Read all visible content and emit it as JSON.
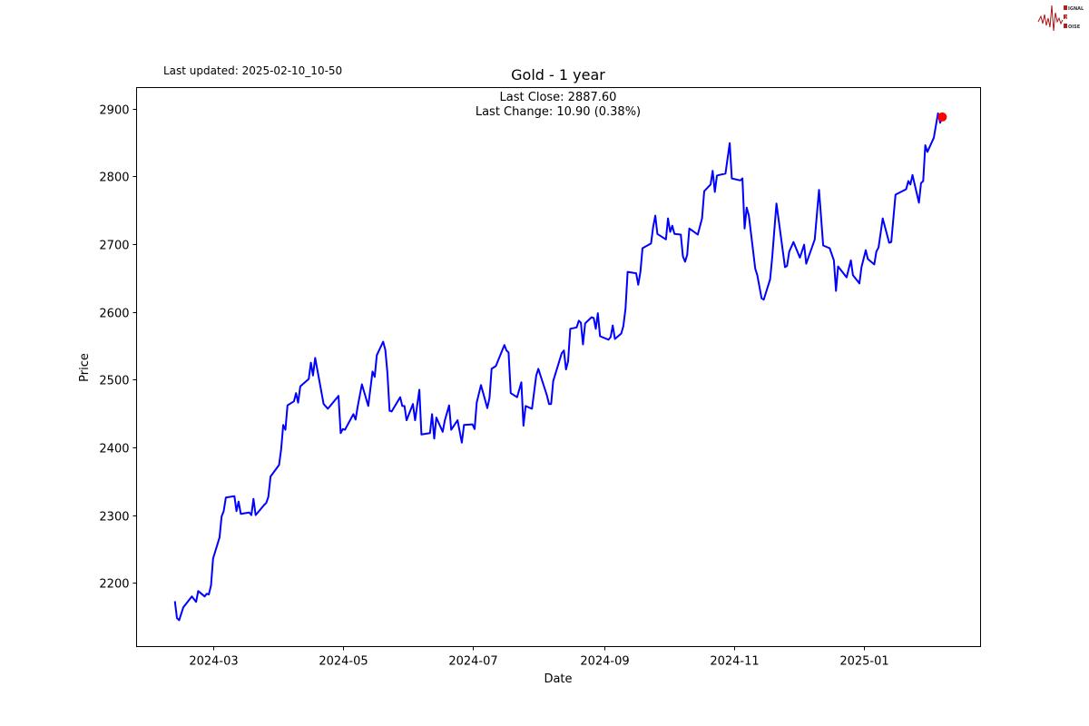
{
  "header": {
    "last_updated": "Last updated: 2025-02-10_10-50",
    "logo_text": "SIGNAL 2 NOISE"
  },
  "chart_data": {
    "type": "line",
    "title": "Gold - 1 year",
    "xlabel": "Date",
    "ylabel": "Price",
    "annotations": [
      "Last Close: 2887.60",
      "Last Change: 10.90 (0.38%)"
    ],
    "xlim": [
      "2024-01-25",
      "2025-02-25"
    ],
    "ylim": [
      2106,
      2931
    ],
    "grid": false,
    "x_ticks": [
      "2024-03",
      "2024-05",
      "2024-07",
      "2024-09",
      "2024-11",
      "2025-01"
    ],
    "y_ticks": [
      2200,
      2300,
      2400,
      2500,
      2600,
      2700,
      2800,
      2900
    ],
    "line_color": "#0000ff",
    "marker_color": "#ff0000",
    "last_point": {
      "x": "2025-02-07",
      "y": 2887.6
    },
    "series": [
      {
        "points": [
          [
            "2024-02-12",
            2173
          ],
          [
            "2024-02-13",
            2148
          ],
          [
            "2024-02-14",
            2145
          ],
          [
            "2024-02-16",
            2164
          ],
          [
            "2024-02-20",
            2180
          ],
          [
            "2024-02-22",
            2172
          ],
          [
            "2024-02-23",
            2188
          ],
          [
            "2024-02-26",
            2180
          ],
          [
            "2024-02-27",
            2184
          ],
          [
            "2024-02-28",
            2183
          ],
          [
            "2024-02-29",
            2196
          ],
          [
            "2024-03-01",
            2236
          ],
          [
            "2024-03-04",
            2267
          ],
          [
            "2024-03-05",
            2298
          ],
          [
            "2024-03-06",
            2306
          ],
          [
            "2024-03-07",
            2326
          ],
          [
            "2024-03-11",
            2328
          ],
          [
            "2024-03-12",
            2306
          ],
          [
            "2024-03-13",
            2320
          ],
          [
            "2024-03-14",
            2302
          ],
          [
            "2024-03-18",
            2304
          ],
          [
            "2024-03-19",
            2300
          ],
          [
            "2024-03-20",
            2324
          ],
          [
            "2024-03-21",
            2300
          ],
          [
            "2024-03-25",
            2315
          ],
          [
            "2024-03-26",
            2318
          ],
          [
            "2024-03-27",
            2327
          ],
          [
            "2024-03-28",
            2357
          ],
          [
            "2024-04-01",
            2374
          ],
          [
            "2024-04-02",
            2397
          ],
          [
            "2024-04-03",
            2433
          ],
          [
            "2024-04-04",
            2426
          ],
          [
            "2024-04-05",
            2462
          ],
          [
            "2024-04-08",
            2468
          ],
          [
            "2024-04-09",
            2480
          ],
          [
            "2024-04-10",
            2466
          ],
          [
            "2024-04-11",
            2490
          ],
          [
            "2024-04-15",
            2501
          ],
          [
            "2024-04-16",
            2525
          ],
          [
            "2024-04-17",
            2506
          ],
          [
            "2024-04-18",
            2532
          ],
          [
            "2024-04-22",
            2464
          ],
          [
            "2024-04-24",
            2457
          ],
          [
            "2024-04-29",
            2476
          ],
          [
            "2024-04-30",
            2421
          ],
          [
            "2024-05-01",
            2427
          ],
          [
            "2024-05-02",
            2426
          ],
          [
            "2024-05-06",
            2449
          ],
          [
            "2024-05-07",
            2441
          ],
          [
            "2024-05-08",
            2460
          ],
          [
            "2024-05-10",
            2493
          ],
          [
            "2024-05-13",
            2461
          ],
          [
            "2024-05-15",
            2512
          ],
          [
            "2024-05-16",
            2504
          ],
          [
            "2024-05-17",
            2536
          ],
          [
            "2024-05-20",
            2556
          ],
          [
            "2024-05-21",
            2544
          ],
          [
            "2024-05-22",
            2510
          ],
          [
            "2024-05-23",
            2454
          ],
          [
            "2024-05-24",
            2453
          ],
          [
            "2024-05-28",
            2474
          ],
          [
            "2024-05-29",
            2461
          ],
          [
            "2024-05-30",
            2461
          ],
          [
            "2024-05-31",
            2440
          ],
          [
            "2024-06-03",
            2464
          ],
          [
            "2024-06-04",
            2440
          ],
          [
            "2024-06-06",
            2485
          ],
          [
            "2024-06-07",
            2419
          ],
          [
            "2024-06-11",
            2421
          ],
          [
            "2024-06-12",
            2449
          ],
          [
            "2024-06-13",
            2413
          ],
          [
            "2024-06-14",
            2444
          ],
          [
            "2024-06-17",
            2423
          ],
          [
            "2024-06-18",
            2440
          ],
          [
            "2024-06-20",
            2462
          ],
          [
            "2024-06-21",
            2426
          ],
          [
            "2024-06-24",
            2440
          ],
          [
            "2024-06-26",
            2407
          ],
          [
            "2024-06-27",
            2433
          ],
          [
            "2024-07-01",
            2434
          ],
          [
            "2024-07-02",
            2427
          ],
          [
            "2024-07-03",
            2466
          ],
          [
            "2024-07-05",
            2492
          ],
          [
            "2024-07-08",
            2458
          ],
          [
            "2024-07-09",
            2473
          ],
          [
            "2024-07-10",
            2516
          ],
          [
            "2024-07-12",
            2520
          ],
          [
            "2024-07-16",
            2551
          ],
          [
            "2024-07-17",
            2543
          ],
          [
            "2024-07-18",
            2540
          ],
          [
            "2024-07-19",
            2480
          ],
          [
            "2024-07-22",
            2474
          ],
          [
            "2024-07-24",
            2496
          ],
          [
            "2024-07-25",
            2432
          ],
          [
            "2024-07-26",
            2461
          ],
          [
            "2024-07-29",
            2457
          ],
          [
            "2024-07-31",
            2506
          ],
          [
            "2024-08-01",
            2516
          ],
          [
            "2024-08-05",
            2477
          ],
          [
            "2024-08-06",
            2464
          ],
          [
            "2024-08-07",
            2464
          ],
          [
            "2024-08-08",
            2498
          ],
          [
            "2024-08-12",
            2539
          ],
          [
            "2024-08-13",
            2543
          ],
          [
            "2024-08-14",
            2515
          ],
          [
            "2024-08-15",
            2527
          ],
          [
            "2024-08-16",
            2575
          ],
          [
            "2024-08-19",
            2577
          ],
          [
            "2024-08-20",
            2587
          ],
          [
            "2024-08-21",
            2584
          ],
          [
            "2024-08-22",
            2552
          ],
          [
            "2024-08-23",
            2583
          ],
          [
            "2024-08-26",
            2592
          ],
          [
            "2024-08-27",
            2591
          ],
          [
            "2024-08-28",
            2575
          ],
          [
            "2024-08-29",
            2598
          ],
          [
            "2024-08-30",
            2564
          ],
          [
            "2024-09-03",
            2559
          ],
          [
            "2024-09-04",
            2563
          ],
          [
            "2024-09-05",
            2580
          ],
          [
            "2024-09-06",
            2560
          ],
          [
            "2024-09-09",
            2568
          ],
          [
            "2024-09-10",
            2579
          ],
          [
            "2024-09-11",
            2605
          ],
          [
            "2024-09-12",
            2659
          ],
          [
            "2024-09-16",
            2657
          ],
          [
            "2024-09-17",
            2640
          ],
          [
            "2024-09-18",
            2659
          ],
          [
            "2024-09-19",
            2694
          ],
          [
            "2024-09-23",
            2701
          ],
          [
            "2024-09-24",
            2725
          ],
          [
            "2024-09-25",
            2742
          ],
          [
            "2024-09-26",
            2715
          ],
          [
            "2024-09-30",
            2707
          ],
          [
            "2024-10-01",
            2738
          ],
          [
            "2024-10-02",
            2718
          ],
          [
            "2024-10-03",
            2727
          ],
          [
            "2024-10-04",
            2715
          ],
          [
            "2024-10-07",
            2714
          ],
          [
            "2024-10-08",
            2682
          ],
          [
            "2024-10-09",
            2674
          ],
          [
            "2024-10-10",
            2684
          ],
          [
            "2024-10-11",
            2723
          ],
          [
            "2024-10-15",
            2714
          ],
          [
            "2024-10-17",
            2738
          ],
          [
            "2024-10-18",
            2778
          ],
          [
            "2024-10-21",
            2788
          ],
          [
            "2024-10-22",
            2808
          ],
          [
            "2024-10-23",
            2777
          ],
          [
            "2024-10-24",
            2801
          ],
          [
            "2024-10-25",
            2802
          ],
          [
            "2024-10-28",
            2804
          ],
          [
            "2024-10-30",
            2849
          ],
          [
            "2024-10-31",
            2797
          ],
          [
            "2024-11-04",
            2794
          ],
          [
            "2024-11-05",
            2797
          ],
          [
            "2024-11-06",
            2723
          ],
          [
            "2024-11-07",
            2754
          ],
          [
            "2024-11-08",
            2742
          ],
          [
            "2024-11-11",
            2664
          ],
          [
            "2024-11-12",
            2654
          ],
          [
            "2024-11-14",
            2620
          ],
          [
            "2024-11-15",
            2618
          ],
          [
            "2024-11-18",
            2648
          ],
          [
            "2024-11-19",
            2680
          ],
          [
            "2024-11-20",
            2721
          ],
          [
            "2024-11-21",
            2760
          ],
          [
            "2024-11-25",
            2666
          ],
          [
            "2024-11-26",
            2668
          ],
          [
            "2024-11-27",
            2689
          ],
          [
            "2024-11-29",
            2703
          ],
          [
            "2024-12-02",
            2680
          ],
          [
            "2024-12-04",
            2699
          ],
          [
            "2024-12-05",
            2671
          ],
          [
            "2024-12-09",
            2707
          ],
          [
            "2024-12-11",
            2780
          ],
          [
            "2024-12-13",
            2698
          ],
          [
            "2024-12-16",
            2694
          ],
          [
            "2024-12-18",
            2676
          ],
          [
            "2024-12-19",
            2631
          ],
          [
            "2024-12-20",
            2667
          ],
          [
            "2024-12-24",
            2651
          ],
          [
            "2024-12-26",
            2676
          ],
          [
            "2024-12-27",
            2654
          ],
          [
            "2024-12-30",
            2642
          ],
          [
            "2024-12-31",
            2666
          ],
          [
            "2025-01-02",
            2691
          ],
          [
            "2025-01-03",
            2678
          ],
          [
            "2025-01-06",
            2670
          ],
          [
            "2025-01-07",
            2689
          ],
          [
            "2025-01-08",
            2695
          ],
          [
            "2025-01-10",
            2738
          ],
          [
            "2025-01-13",
            2702
          ],
          [
            "2025-01-14",
            2703
          ],
          [
            "2025-01-16",
            2773
          ],
          [
            "2025-01-21",
            2781
          ],
          [
            "2025-01-22",
            2793
          ],
          [
            "2025-01-23",
            2788
          ],
          [
            "2025-01-24",
            2802
          ],
          [
            "2025-01-27",
            2761
          ],
          [
            "2025-01-28",
            2790
          ],
          [
            "2025-01-29",
            2793
          ],
          [
            "2025-01-30",
            2846
          ],
          [
            "2025-01-31",
            2836
          ],
          [
            "2025-02-03",
            2857
          ],
          [
            "2025-02-05",
            2893
          ],
          [
            "2025-02-06",
            2879
          ],
          [
            "2025-02-07",
            2887.6
          ]
        ]
      }
    ]
  }
}
